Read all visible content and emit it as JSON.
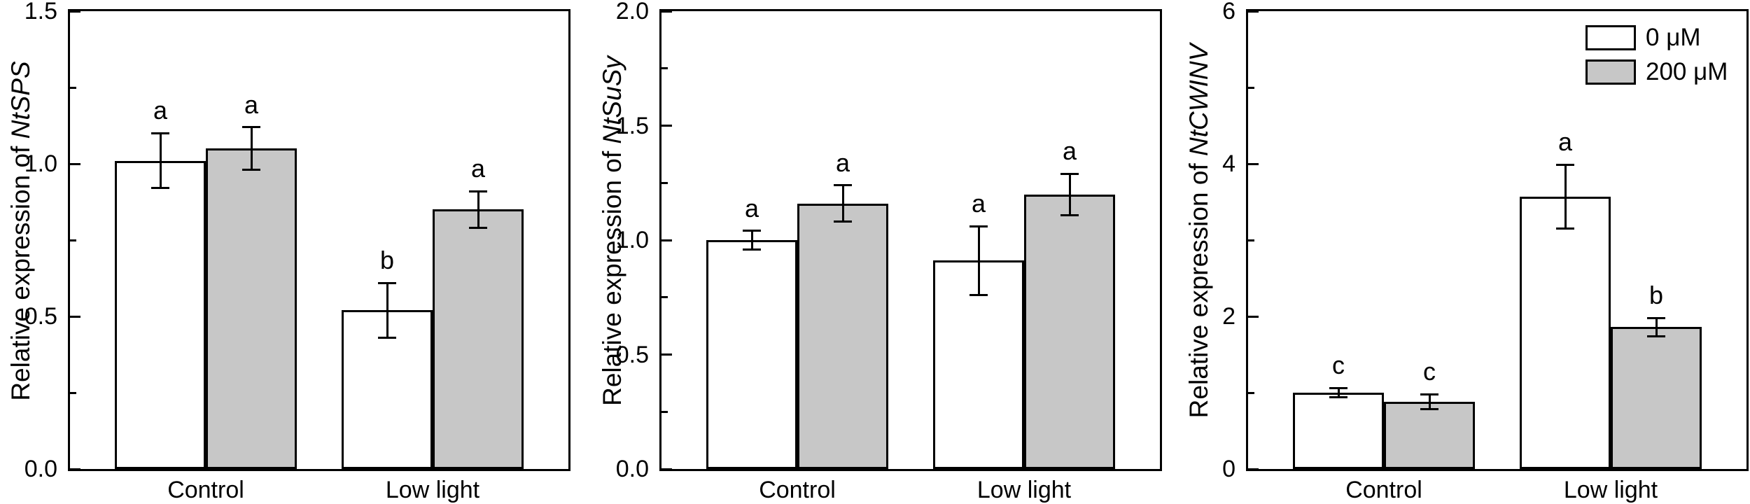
{
  "figure": {
    "background": "#ffffff",
    "bar_outline": "#000000"
  },
  "colors": {
    "white_series": "#ffffff",
    "gray_series": "#c7c7c7"
  },
  "legend": {
    "entries": [
      {
        "label": "0 μM",
        "fill": "#ffffff"
      },
      {
        "label": "200 μM",
        "fill": "#c7c7c7"
      }
    ]
  },
  "chart_data": [
    {
      "type": "bar",
      "title": "",
      "ylabel_prefix": "Relative expression of ",
      "gene": "NtSPS",
      "xlabel": "",
      "categories": [
        "Control",
        "Low light"
      ],
      "ylim": [
        0,
        1.5
      ],
      "yticks": [
        {
          "v": 0.0,
          "label": "0.0"
        },
        {
          "v": 0.5,
          "label": "0.5"
        },
        {
          "v": 1.0,
          "label": "1.0"
        },
        {
          "v": 1.5,
          "label": "1.5"
        }
      ],
      "minor_ticks": [
        0.25,
        0.75,
        1.25
      ],
      "grid": false,
      "legend_visible": false,
      "series": [
        {
          "name": "0 μM",
          "fill": "#ffffff",
          "values": [
            1.01,
            0.52
          ],
          "errors": [
            0.09,
            0.09
          ],
          "letters": [
            "a",
            "b"
          ]
        },
        {
          "name": "200 μM",
          "fill": "#c7c7c7",
          "values": [
            1.05,
            0.85
          ],
          "errors": [
            0.07,
            0.06
          ],
          "letters": [
            "a",
            "a"
          ]
        }
      ]
    },
    {
      "type": "bar",
      "title": "",
      "ylabel_prefix": "Relative expression of ",
      "gene": "NtSuSy",
      "xlabel": "",
      "categories": [
        "Control",
        "Low light"
      ],
      "ylim": [
        0,
        2.0
      ],
      "yticks": [
        {
          "v": 0.0,
          "label": "0.0"
        },
        {
          "v": 0.5,
          "label": "0.5"
        },
        {
          "v": 1.0,
          "label": "1.0"
        },
        {
          "v": 1.5,
          "label": "1.5"
        },
        {
          "v": 2.0,
          "label": "2.0"
        }
      ],
      "minor_ticks": [
        0.25,
        0.75,
        1.25,
        1.75
      ],
      "grid": false,
      "legend_visible": false,
      "series": [
        {
          "name": "0 μM",
          "fill": "#ffffff",
          "values": [
            1.0,
            0.91
          ],
          "errors": [
            0.04,
            0.15
          ],
          "letters": [
            "a",
            "a"
          ]
        },
        {
          "name": "200 μM",
          "fill": "#c7c7c7",
          "values": [
            1.16,
            1.2
          ],
          "errors": [
            0.08,
            0.09
          ],
          "letters": [
            "a",
            "a"
          ]
        }
      ]
    },
    {
      "type": "bar",
      "title": "",
      "ylabel_prefix": "Relative expression of ",
      "gene": "NtCWINV",
      "xlabel": "",
      "categories": [
        "Control",
        "Low light"
      ],
      "ylim": [
        0,
        6
      ],
      "yticks": [
        {
          "v": 0,
          "label": "0"
        },
        {
          "v": 2,
          "label": "2"
        },
        {
          "v": 4,
          "label": "4"
        },
        {
          "v": 6,
          "label": "6"
        }
      ],
      "minor_ticks": [
        1,
        3,
        5
      ],
      "grid": false,
      "legend_visible": true,
      "series": [
        {
          "name": "0 μM",
          "fill": "#ffffff",
          "values": [
            1.0,
            3.57
          ],
          "errors": [
            0.06,
            0.42
          ],
          "letters": [
            "c",
            "a"
          ]
        },
        {
          "name": "200 μM",
          "fill": "#c7c7c7",
          "values": [
            0.88,
            1.86
          ],
          "errors": [
            0.1,
            0.12
          ],
          "letters": [
            "c",
            "b"
          ]
        }
      ]
    }
  ]
}
